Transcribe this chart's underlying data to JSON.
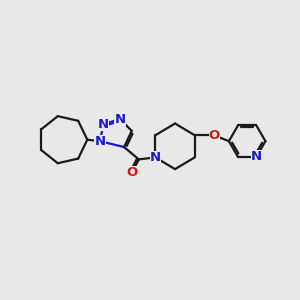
{
  "bg_color": "#e8e8e8",
  "bond_color": "#1a1a1a",
  "N_color": "#1a1acc",
  "O_color": "#cc1a1a",
  "line_width": 1.6,
  "font_size": 9.5,
  "xlim": [
    0,
    10
  ],
  "ylim": [
    0,
    10
  ]
}
